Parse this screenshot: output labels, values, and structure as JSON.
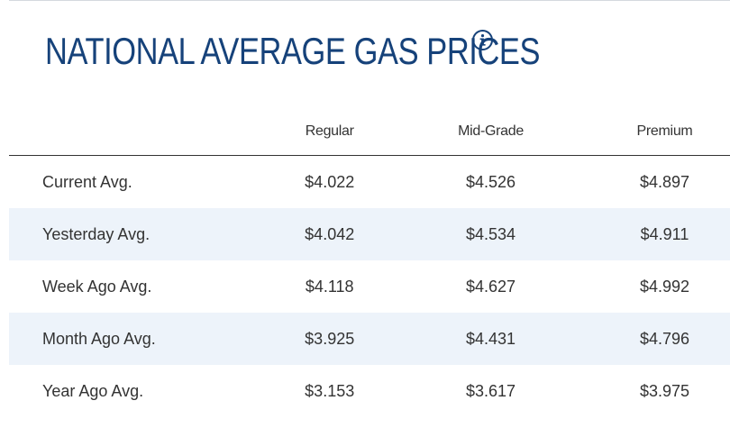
{
  "title": "NATIONAL AVERAGE GAS PRICES",
  "info_icon": "info-circle-icon",
  "colors": {
    "title": "#16427a",
    "row_shade": "#edf3fa",
    "text": "#333333"
  },
  "table": {
    "headers": [
      "",
      "Regular",
      "Mid-Grade",
      "Premium"
    ],
    "rows": [
      {
        "label": "Current Avg.",
        "regular": "$4.022",
        "midgrade": "$4.526",
        "premium": "$4.897"
      },
      {
        "label": "Yesterday Avg.",
        "regular": "$4.042",
        "midgrade": "$4.534",
        "premium": "$4.911"
      },
      {
        "label": "Week Ago Avg.",
        "regular": "$4.118",
        "midgrade": "$4.627",
        "premium": "$4.992"
      },
      {
        "label": "Month Ago Avg.",
        "regular": "$3.925",
        "midgrade": "$4.431",
        "premium": "$4.796"
      },
      {
        "label": "Year Ago Avg.",
        "regular": "$3.153",
        "midgrade": "$3.617",
        "premium": "$3.975"
      }
    ]
  }
}
